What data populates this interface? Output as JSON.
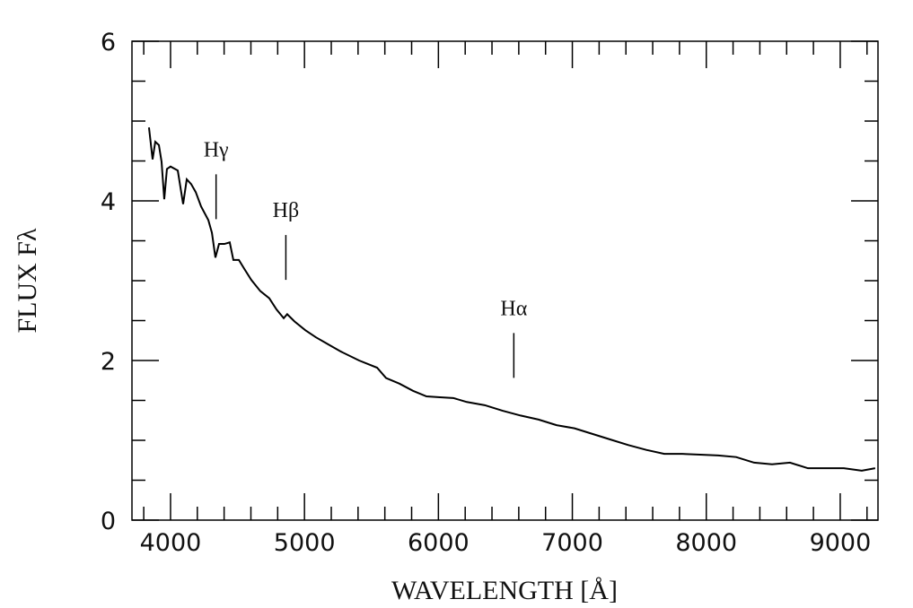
{
  "chart_data": {
    "type": "line",
    "xlabel": "WAVELENGTH [Å]",
    "ylabel": "FLUX Fλ",
    "x": [
      3839,
      3866,
      3886,
      3913,
      3933,
      3953,
      3973,
      4000,
      4054,
      4094,
      4121,
      4154,
      4188,
      4228,
      4282,
      4309,
      4335,
      4362,
      4402,
      4442,
      4469,
      4510,
      4550,
      4603,
      4670,
      4737,
      4791,
      4845,
      4871,
      4925,
      5006,
      5086,
      5180,
      5274,
      5408,
      5542,
      5609,
      5709,
      5810,
      5911,
      6011,
      6111,
      6212,
      6346,
      6480,
      6614,
      6748,
      6882,
      7016,
      7150,
      7284,
      7418,
      7552,
      7686,
      7820,
      7954,
      8089,
      8223,
      8357,
      8491,
      8625,
      8759,
      8893,
      9027,
      9161,
      9261
    ],
    "series": [
      {
        "color": "#000000",
        "values": [
          4.92,
          4.52,
          4.74,
          4.7,
          4.49,
          4.02,
          4.4,
          4.43,
          4.38,
          3.96,
          4.27,
          4.21,
          4.11,
          3.93,
          3.76,
          3.6,
          3.29,
          3.46,
          3.46,
          3.48,
          3.26,
          3.26,
          3.15,
          3.01,
          2.87,
          2.78,
          2.64,
          2.53,
          2.58,
          2.49,
          2.38,
          2.29,
          2.2,
          2.11,
          2.0,
          1.91,
          1.78,
          1.71,
          1.62,
          1.55,
          1.54,
          1.53,
          1.48,
          1.44,
          1.37,
          1.31,
          1.26,
          1.19,
          1.15,
          1.08,
          1.01,
          0.94,
          0.88,
          0.83,
          0.83,
          0.82,
          0.81,
          0.79,
          0.72,
          0.7,
          0.72,
          0.65,
          0.65,
          0.65,
          0.62,
          0.65
        ]
      }
    ],
    "xlim": [
      3712,
      9282
    ],
    "ylim": [
      0,
      6
    ],
    "xticks": [
      4000,
      5000,
      6000,
      7000,
      8000,
      9000
    ],
    "xminor_ticks": [
      3800,
      4200,
      4400,
      4600,
      4800,
      5200,
      5400,
      5600,
      5800,
      6200,
      6400,
      6600,
      6800,
      7200,
      7400,
      7600,
      7800,
      8200,
      8400,
      8600,
      8800,
      9200
    ],
    "yticks": [
      0,
      2,
      4,
      6
    ],
    "yminor_ticks": [
      0.5,
      1,
      1.5,
      2.5,
      3,
      3.5,
      4.5,
      5,
      5.5
    ],
    "annotations": [
      {
        "text": "Hγ",
        "x": 4340
      },
      {
        "text": "Hβ",
        "x": 4861
      },
      {
        "text": "Hα",
        "x": 6563
      }
    ]
  }
}
